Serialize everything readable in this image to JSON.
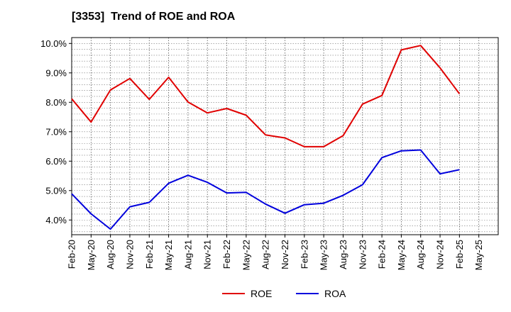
{
  "chart_data": {
    "type": "line",
    "title": "[3353]  Trend of ROE and ROA",
    "xlabel": "",
    "ylabel": "",
    "x": [
      "Feb-20",
      "May-20",
      "Aug-20",
      "Nov-20",
      "Feb-21",
      "May-21",
      "Aug-21",
      "Nov-21",
      "Feb-22",
      "May-22",
      "Aug-22",
      "Nov-22",
      "Feb-23",
      "May-23",
      "Aug-23",
      "Nov-23",
      "Feb-24",
      "May-24",
      "Aug-24",
      "Nov-24",
      "Feb-25",
      "May-25"
    ],
    "y_ticks": [
      "10.0%",
      "9.0%",
      "8.0%",
      "7.0%",
      "6.0%",
      "5.0%",
      "4.0%"
    ],
    "ylim": [
      3.5,
      10.2
    ],
    "grid": true,
    "legend_position": "bottom-center",
    "series": [
      {
        "name": "ROE",
        "color": "#e00000",
        "values": [
          8.12,
          7.33,
          8.42,
          8.81,
          8.1,
          8.85,
          8.01,
          7.64,
          7.79,
          7.56,
          6.89,
          6.79,
          6.49,
          6.49,
          6.87,
          7.94,
          8.23,
          9.78,
          9.93,
          9.17,
          8.29,
          null
        ]
      },
      {
        "name": "ROA",
        "color": "#0000dd",
        "values": [
          4.89,
          4.21,
          3.69,
          4.45,
          4.6,
          5.25,
          5.52,
          5.28,
          4.92,
          4.94,
          4.54,
          4.23,
          4.52,
          4.57,
          4.84,
          5.2,
          6.12,
          6.35,
          6.38,
          5.57,
          5.71,
          null
        ]
      }
    ]
  }
}
